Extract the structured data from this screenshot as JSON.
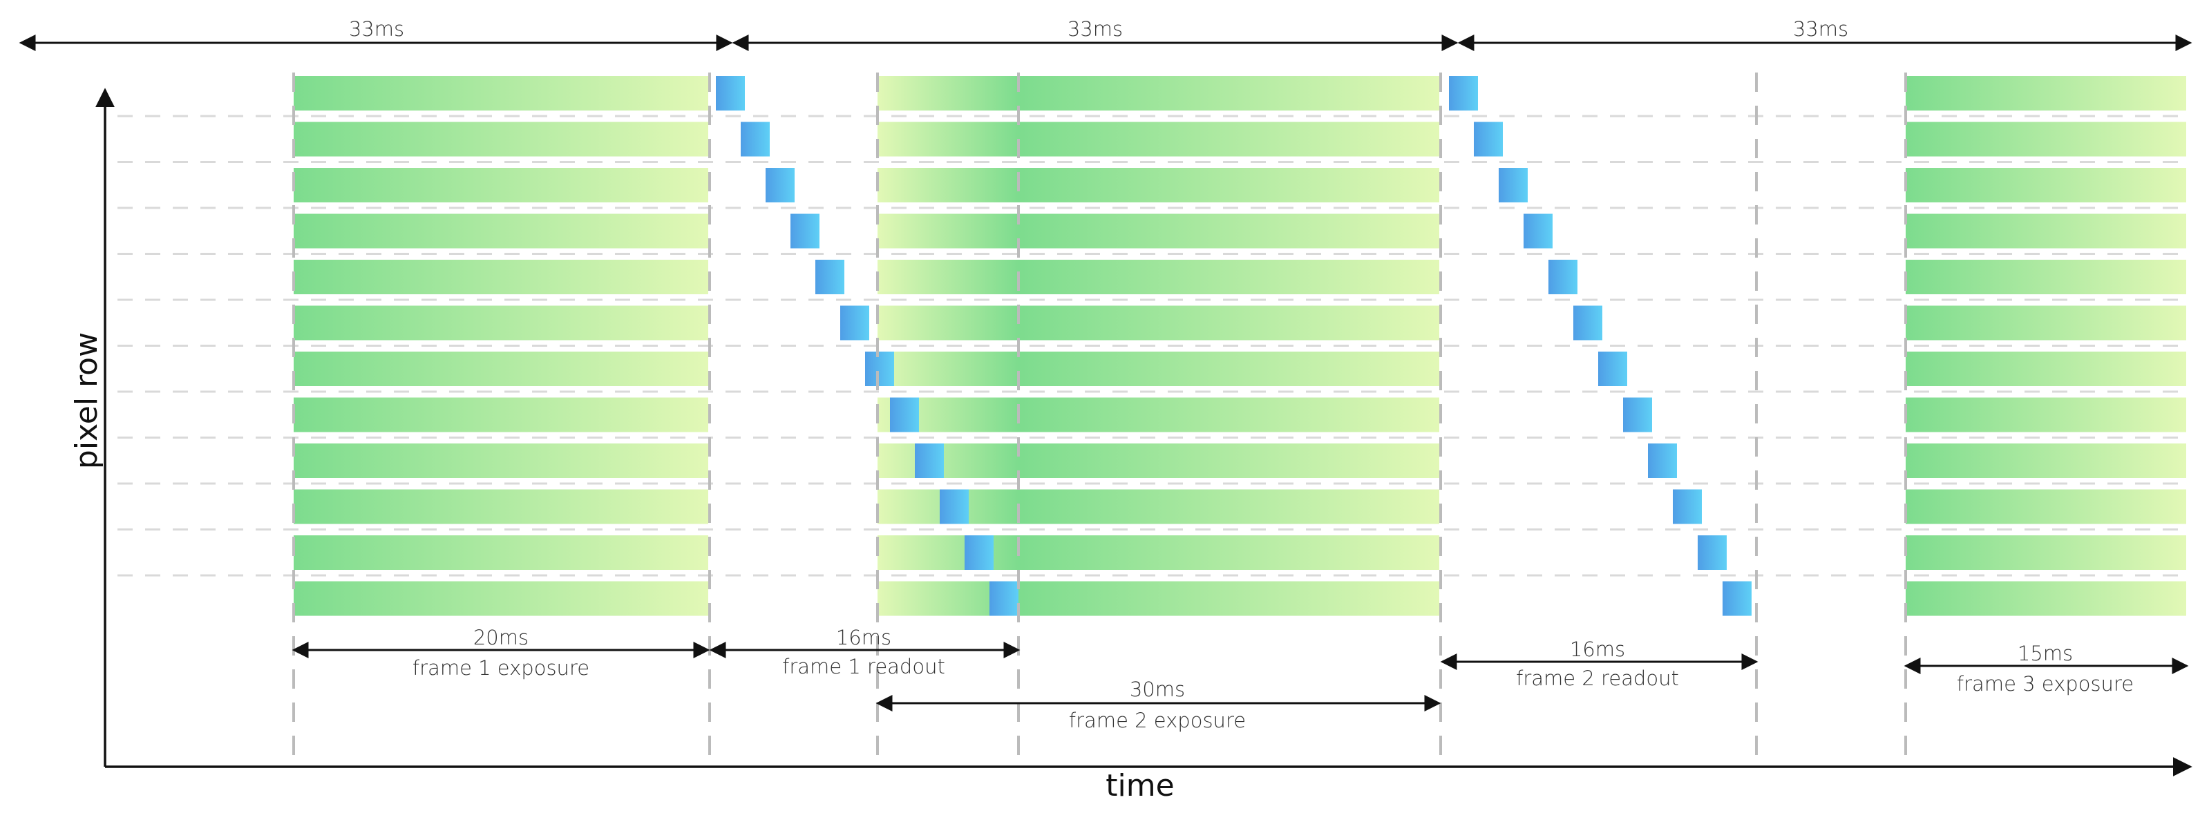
{
  "diagram": {
    "title_y": "pixel row",
    "title_x": "time",
    "top_periods": [
      "33ms",
      "33ms",
      "33ms"
    ],
    "row_count": 12,
    "timing_labels": [
      {
        "value": "20ms",
        "caption": "frame 1 exposure"
      },
      {
        "value": "16ms",
        "caption": "frame 1 readout"
      },
      {
        "value": "30ms",
        "caption": "frame 2 exposure"
      },
      {
        "value": "16ms",
        "caption": "frame 2 readout"
      },
      {
        "value": "15ms",
        "caption": "frame 3 exposure"
      }
    ],
    "colors": {
      "exposure_start": "#7ddc8e",
      "exposure_end": "#e2f8b6",
      "readout_start": "#4f9ee6",
      "readout_end": "#5fd0f6",
      "axis": "#111111",
      "guide": "#bbbbbb",
      "row_line": "#d9d9d9"
    }
  }
}
